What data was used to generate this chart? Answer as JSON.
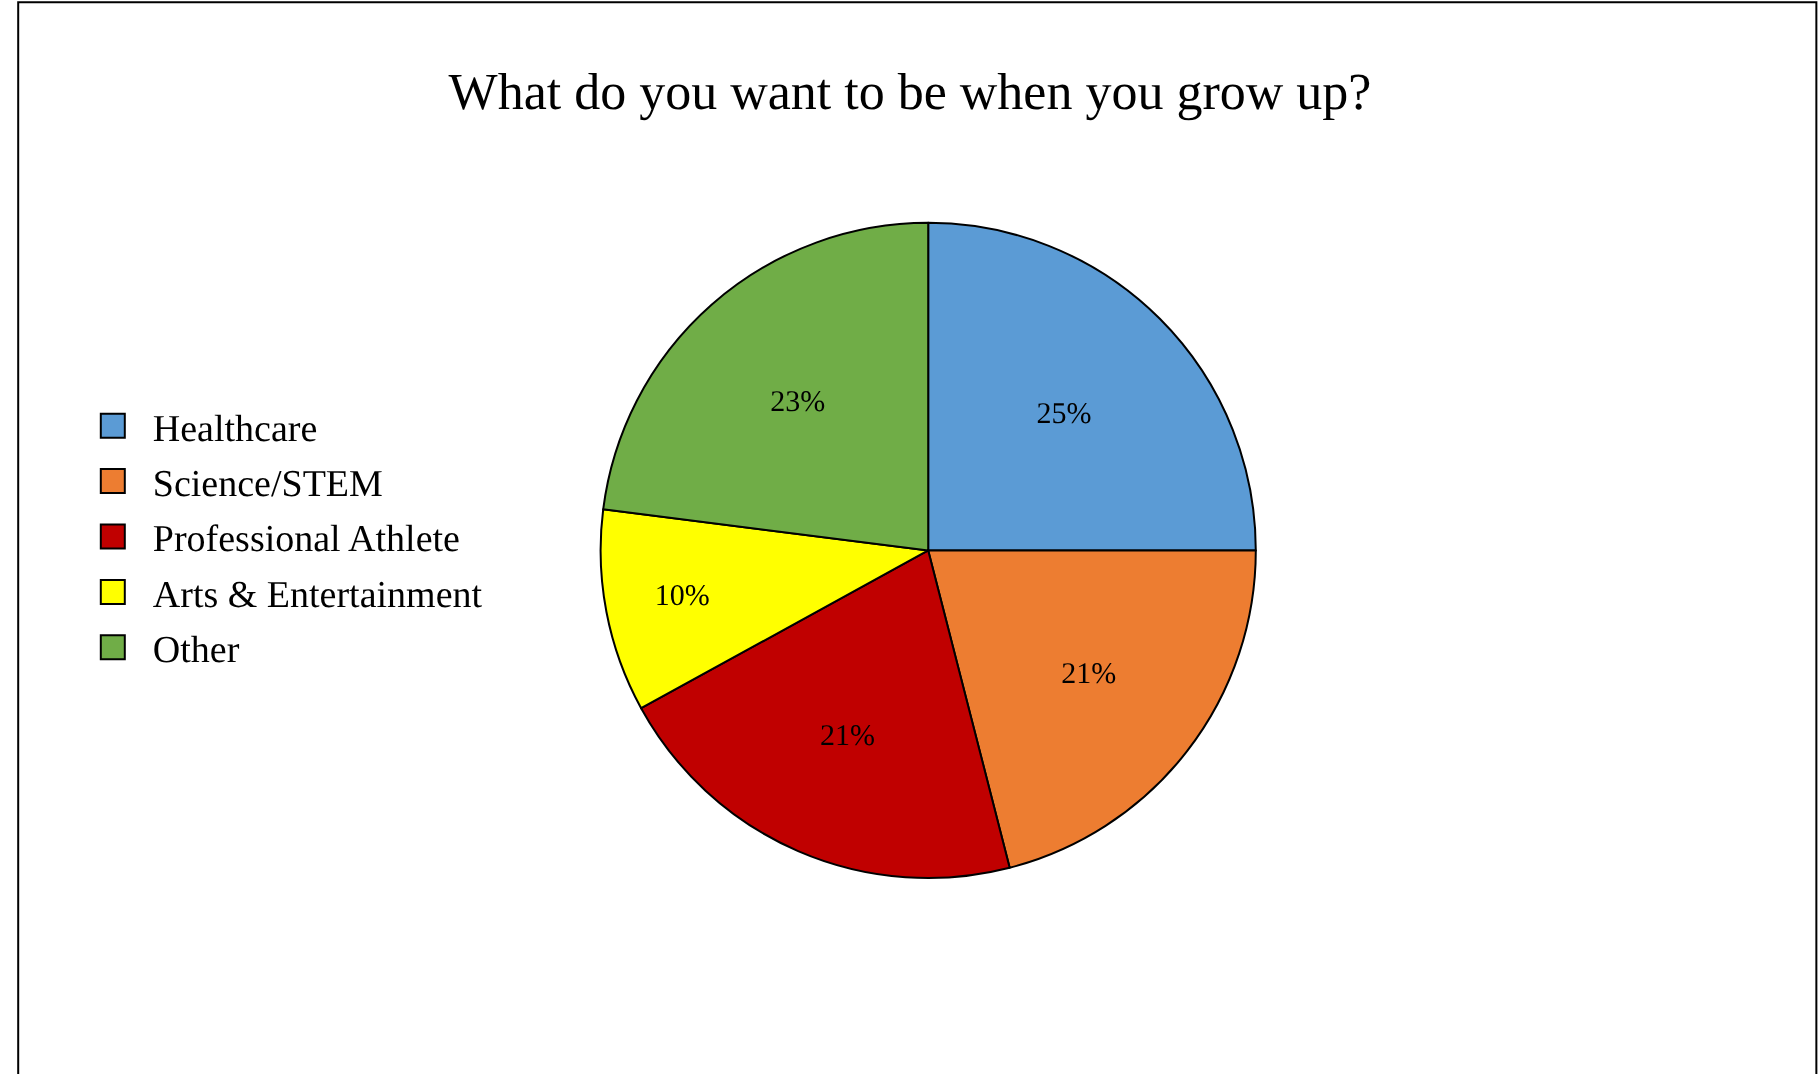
{
  "chart_data": {
    "type": "pie",
    "title": "What do you want to be when you grow up?",
    "categories": [
      "Healthcare",
      "Science/STEM",
      "Professional Athlete",
      "Arts & Entertainment",
      "Other"
    ],
    "values": [
      25,
      21,
      21,
      10,
      23
    ],
    "value_labels": [
      "25%",
      "21%",
      "21%",
      "10%",
      "23%"
    ],
    "colors": [
      "#5b9bd5",
      "#ed7d31",
      "#c00000",
      "#ffff00",
      "#70ad47"
    ],
    "legend": "left"
  }
}
